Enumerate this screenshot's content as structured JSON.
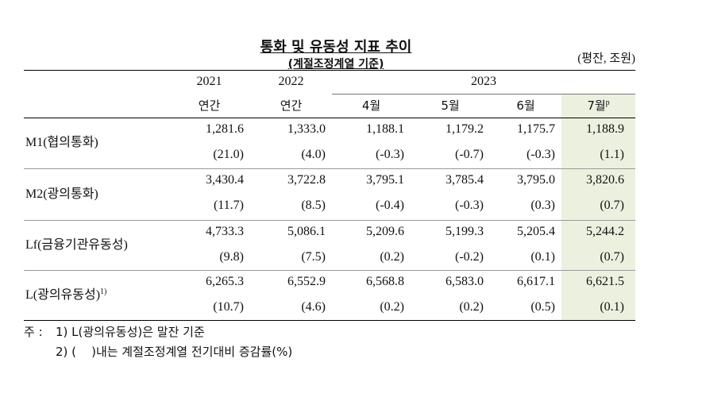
{
  "header": {
    "title": "통화 및 유동성 지표 추이",
    "subtitle": "(계절조정계열 기준)",
    "unit": "(평잔, 조원)"
  },
  "table": {
    "years": [
      "2021",
      "2022",
      "2023"
    ],
    "periods": [
      "연간",
      "연간",
      "4월",
      "5월",
      "6월",
      "7월"
    ],
    "period_mark": "p",
    "rows": [
      {
        "label": "M1(협의통화)",
        "values": [
          "1,281.6",
          "1,333.0",
          "1,188.1",
          "1,179.2",
          "1,175.7",
          "1,188.9"
        ],
        "changes": [
          "(21.0)",
          "(4.0)",
          "(-0.3)",
          "(-0.7)",
          "(-0.3)",
          "(1.1)"
        ]
      },
      {
        "label": "M2(광의통화)",
        "values": [
          "3,430.4",
          "3,722.8",
          "3,795.1",
          "3,785.4",
          "3,795.0",
          "3,820.6"
        ],
        "changes": [
          "(11.7)",
          "(8.5)",
          "(-0.4)",
          "(-0.3)",
          "(0.3)",
          "(0.7)"
        ]
      },
      {
        "label": "Lf(금융기관유동성)",
        "values": [
          "4,733.3",
          "5,086.1",
          "5,209.6",
          "5,199.3",
          "5,205.4",
          "5,244.2"
        ],
        "changes": [
          "(9.8)",
          "(7.5)",
          "(0.2)",
          "(-0.2)",
          "(0.1)",
          "(0.7)"
        ]
      },
      {
        "label": "L(광의유동성)",
        "note": "1)",
        "values": [
          "6,265.3",
          "6,552.9",
          "6,568.8",
          "6,583.0",
          "6,617.1",
          "6,621.5"
        ],
        "changes": [
          "(10.7)",
          "(4.6)",
          "(0.2)",
          "(0.2)",
          "(0.5)",
          "(0.1)"
        ]
      }
    ]
  },
  "footnotes": {
    "lead": "주 :",
    "items": [
      "1) L(광의유동성)은 말잔 기준",
      "2) (    )내는 계절조정계열 전기대비 증감률(%)"
    ]
  }
}
